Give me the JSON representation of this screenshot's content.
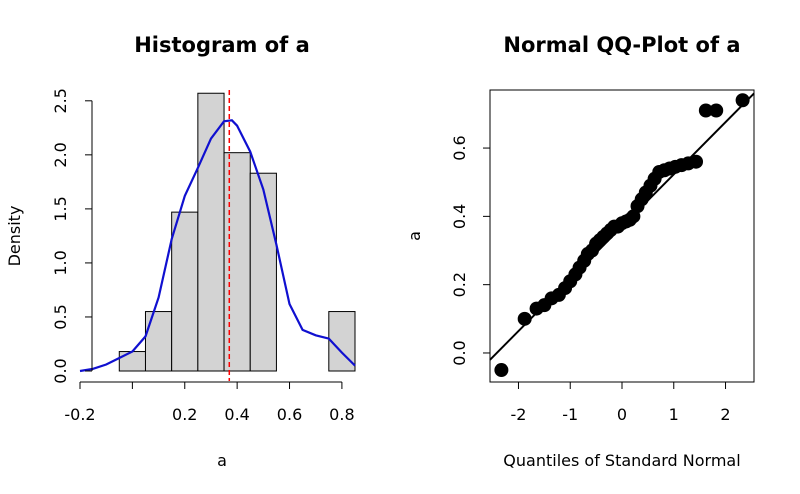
{
  "chart_data": [
    {
      "type": "bar",
      "title": "Histogram of a",
      "xlabel": "a",
      "ylabel": "Density",
      "xlim": [
        -0.2,
        0.85
      ],
      "ylim": [
        0,
        2.6
      ],
      "x_ticks": [
        -0.2,
        0.0,
        0.2,
        0.4,
        0.6,
        0.8
      ],
      "x_tick_labels": [
        "-0.2",
        "",
        "0.2",
        "0.4",
        "0.6",
        "0.8"
      ],
      "y_ticks": [
        0.0,
        0.5,
        1.0,
        1.5,
        2.0,
        2.5
      ],
      "y_tick_labels": [
        "0.0",
        "0.5",
        "1.0",
        "1.5",
        "2.0",
        "2.5"
      ],
      "bins": [
        {
          "x0": -0.05,
          "x1": 0.05,
          "density": 0.18
        },
        {
          "x0": 0.05,
          "x1": 0.15,
          "density": 0.55
        },
        {
          "x0": 0.15,
          "x1": 0.25,
          "density": 1.47
        },
        {
          "x0": 0.25,
          "x1": 0.35,
          "density": 2.57
        },
        {
          "x0": 0.35,
          "x1": 0.45,
          "density": 2.02
        },
        {
          "x0": 0.45,
          "x1": 0.55,
          "density": 1.83
        },
        {
          "x0": 0.55,
          "x1": 0.65,
          "density": 0.0
        },
        {
          "x0": 0.65,
          "x1": 0.75,
          "density": 0.0
        },
        {
          "x0": 0.75,
          "x1": 0.85,
          "density": 0.55
        }
      ],
      "density_curve": {
        "color": "#1010d0",
        "x": [
          -0.2,
          -0.15,
          -0.1,
          -0.05,
          0.0,
          0.05,
          0.1,
          0.15,
          0.2,
          0.25,
          0.3,
          0.35,
          0.38,
          0.4,
          0.45,
          0.5,
          0.55,
          0.6,
          0.65,
          0.7,
          0.75,
          0.8,
          0.85
        ],
        "y": [
          0.0,
          0.02,
          0.06,
          0.12,
          0.18,
          0.32,
          0.68,
          1.22,
          1.62,
          1.88,
          2.15,
          2.31,
          2.32,
          2.27,
          2.03,
          1.68,
          1.17,
          0.62,
          0.38,
          0.33,
          0.3,
          0.17,
          0.05
        ]
      },
      "mean_line": {
        "x": 0.37,
        "color": "#ff0000"
      },
      "bar_color": "#d3d3d3"
    },
    {
      "type": "scatter",
      "title": "Normal QQ-Plot of a",
      "xlabel": "Quantiles of Standard Normal",
      "ylabel": "a",
      "xlim": [
        -2.55,
        2.55
      ],
      "ylim": [
        -0.085,
        0.77
      ],
      "x_ticks": [
        -2,
        -1,
        0,
        1,
        2
      ],
      "x_tick_labels": [
        "-2",
        "-1",
        "0",
        "1",
        "2"
      ],
      "y_ticks": [
        0.0,
        0.2,
        0.4,
        0.6
      ],
      "y_tick_labels": [
        "0.0",
        "0.2",
        "0.4",
        "0.6"
      ],
      "reference_line": {
        "x": [
          -2.55,
          2.55
        ],
        "y": [
          -0.02,
          0.76
        ]
      },
      "points": {
        "x": [
          -2.33,
          -1.88,
          -1.65,
          -1.5,
          -1.36,
          -1.22,
          -1.1,
          -1.0,
          -0.9,
          -0.82,
          -0.73,
          -0.66,
          -0.58,
          -0.5,
          -0.43,
          -0.36,
          -0.29,
          -0.22,
          -0.15,
          -0.08,
          0.0,
          0.08,
          0.15,
          0.22,
          0.3,
          0.38,
          0.46,
          0.55,
          0.63,
          0.72,
          0.82,
          0.92,
          1.03,
          1.15,
          1.28,
          1.43,
          1.62,
          1.82,
          2.33
        ],
        "y": [
          -0.05,
          0.1,
          0.13,
          0.14,
          0.16,
          0.17,
          0.19,
          0.21,
          0.23,
          0.25,
          0.27,
          0.29,
          0.3,
          0.32,
          0.33,
          0.34,
          0.35,
          0.36,
          0.37,
          0.37,
          0.38,
          0.385,
          0.39,
          0.4,
          0.43,
          0.45,
          0.47,
          0.49,
          0.51,
          0.53,
          0.535,
          0.54,
          0.545,
          0.55,
          0.555,
          0.56,
          0.71,
          0.71,
          0.74
        ]
      }
    }
  ]
}
